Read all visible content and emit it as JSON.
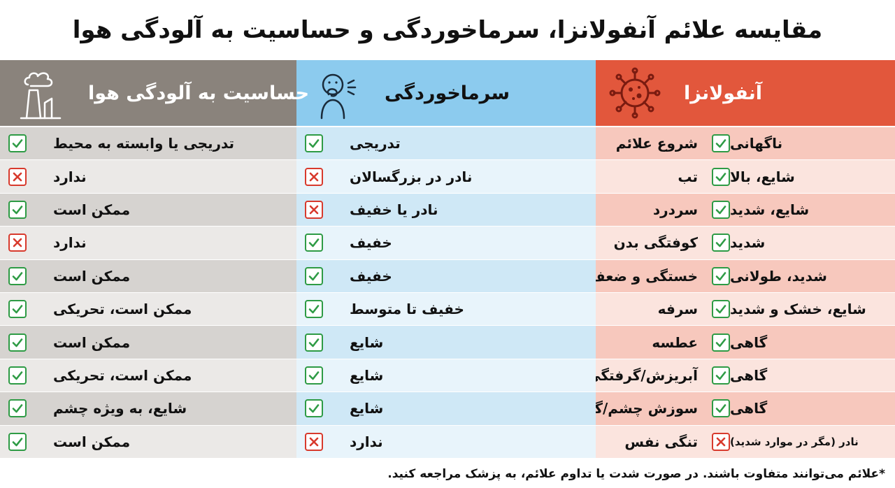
{
  "title": "مقایسه علائم آنفولانزا، سرماخوردگی و حساسیت به آلودگی هوا",
  "columns": {
    "flu": {
      "label": "آنفولانزا",
      "icon": "virus-icon",
      "color": "#e2573c"
    },
    "cold": {
      "label": "سرماخوردگی",
      "icon": "sneezing-person-icon",
      "color": "#8ccbee"
    },
    "air": {
      "label": "حساسیت به آلودگی هوا",
      "icon": "factory-smoke-icon",
      "color": "#8a837c"
    }
  },
  "rows": [
    {
      "symptom": "شروع علائم",
      "flu": {
        "value": "ناگهانی",
        "mark": "yes"
      },
      "cold": {
        "value": "تدریجی",
        "mark": "yes"
      },
      "air": {
        "value": "تدریجی یا وابسته به محیط",
        "mark": "yes"
      }
    },
    {
      "symptom": "تب",
      "flu": {
        "value": "شایع، بالا",
        "mark": "yes"
      },
      "cold": {
        "value": "نادر در بزرگسالان",
        "mark": "no"
      },
      "air": {
        "value": "ندارد",
        "mark": "no"
      }
    },
    {
      "symptom": "سردرد",
      "flu": {
        "value": "شایع، شدید",
        "mark": "yes"
      },
      "cold": {
        "value": "نادر یا خفیف",
        "mark": "no"
      },
      "air": {
        "value": "ممکن است",
        "mark": "yes"
      }
    },
    {
      "symptom": "کوفتگی بدن",
      "flu": {
        "value": "شدید",
        "mark": "yes"
      },
      "cold": {
        "value": "خفیف",
        "mark": "yes"
      },
      "air": {
        "value": "ندارد",
        "mark": "no"
      }
    },
    {
      "symptom": "خستگی و ضعف",
      "flu": {
        "value": "شدید، طولانی",
        "mark": "yes"
      },
      "cold": {
        "value": "خفیف",
        "mark": "yes"
      },
      "air": {
        "value": "ممکن است",
        "mark": "yes"
      }
    },
    {
      "symptom": "سرفه",
      "flu": {
        "value": "شایع، خشک و شدید",
        "mark": "yes"
      },
      "cold": {
        "value": "خفیف تا متوسط",
        "mark": "yes"
      },
      "air": {
        "value": "ممکن است، تحریکی",
        "mark": "yes"
      }
    },
    {
      "symptom": "عطسه",
      "flu": {
        "value": "گاهی",
        "mark": "yes"
      },
      "cold": {
        "value": "شایع",
        "mark": "yes"
      },
      "air": {
        "value": "ممکن است",
        "mark": "yes"
      }
    },
    {
      "symptom": "آبریزش/گرفتگی بینی",
      "flu": {
        "value": "گاهی",
        "mark": "yes"
      },
      "cold": {
        "value": "شایع",
        "mark": "yes"
      },
      "air": {
        "value": "ممکن است، تحریکی",
        "mark": "yes"
      }
    },
    {
      "symptom": "سوزش چشم/گلو",
      "flu": {
        "value": "گاهی",
        "mark": "yes"
      },
      "cold": {
        "value": "شایع",
        "mark": "yes"
      },
      "air": {
        "value": "شایع، به ویژه چشم",
        "mark": "yes"
      }
    },
    {
      "symptom": "تنگی نفس",
      "flu": {
        "value": "نادر (مگر در موارد شدید)",
        "mark": "no"
      },
      "cold": {
        "value": "ندارد",
        "mark": "no"
      },
      "air": {
        "value": "ممکن است",
        "mark": "yes"
      }
    }
  ],
  "footer": "*علائم می‌توانند متفاوت باشند. در صورت شدت یا تداوم علائم، به پزشک مراجعه کنید."
}
